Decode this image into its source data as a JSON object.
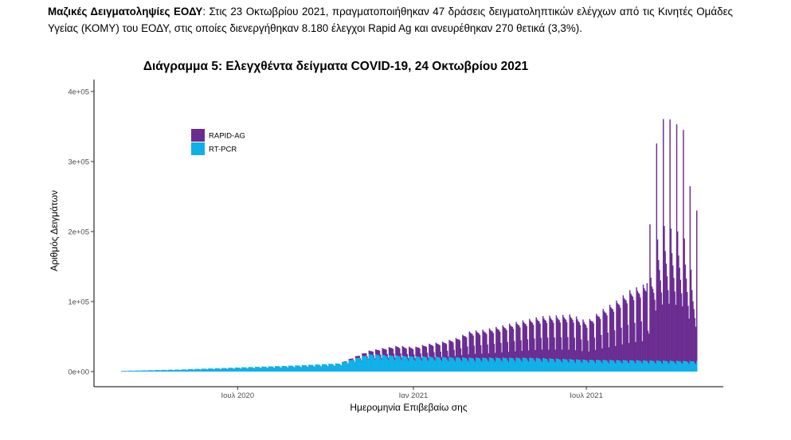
{
  "paragraph": {
    "lead": "Μαζικές Δειγματοληψίες ΕΟΔΥ",
    "text": ": Στις 23 Οκτωβρίου 2021, πραγματοποιήθηκαν 47 δράσεις δειγματοληπτικών ελέγχων από τις Κινητές Ομάδες Υγείας (ΚΟΜΥ) του ΕΟΔΥ, στις οποίες διενεργήθηκαν 8.180 έλεγχοι Rapid Ag και ανευρέθηκαν 270 θετικά (3,3%)."
  },
  "chart_data": {
    "type": "bar",
    "stacked": true,
    "title": "Διάγραμμα 5: Ελεγχθέντα δείγματα COVID-19, 24 Οκτωβρίου 2021",
    "xlabel": "Ημερομηνία Επιβεβαίω σης",
    "ylabel": "Αριθμός Δειγμάτων",
    "x_start": "2020-03-01",
    "x_end": "2021-10-24",
    "x_ticks": [
      {
        "date": "2020-07-01",
        "label": "Ιουλ 2020"
      },
      {
        "date": "2021-01-01",
        "label": "Ιαν 2021"
      },
      {
        "date": "2021-07-01",
        "label": "Ιουλ 2021"
      }
    ],
    "ylim": [
      0,
      420000
    ],
    "y_ticks": [
      {
        "value": 0,
        "label": "0e+00"
      },
      {
        "value": 100000,
        "label": "1e+05"
      },
      {
        "value": 200000,
        "label": "2e+05"
      },
      {
        "value": 300000,
        "label": "3e+05"
      },
      {
        "value": 400000,
        "label": "4e+05"
      }
    ],
    "grid": false,
    "legend_position": "top-left inside",
    "series": [
      {
        "name": "RAPID-AG",
        "color": "#6a2c91",
        "weekly_peaks": [
          [
            "2020-10-15",
            0
          ],
          [
            "2020-11-01",
            3000
          ],
          [
            "2020-11-15",
            5000
          ],
          [
            "2020-12-01",
            10000
          ],
          [
            "2020-12-15",
            14000
          ],
          [
            "2021-01-01",
            13000
          ],
          [
            "2021-01-15",
            18000
          ],
          [
            "2021-02-01",
            22000
          ],
          [
            "2021-02-15",
            28000
          ],
          [
            "2021-03-01",
            38000
          ],
          [
            "2021-03-15",
            40000
          ],
          [
            "2021-04-01",
            45000
          ],
          [
            "2021-04-15",
            50000
          ],
          [
            "2021-05-01",
            55000
          ],
          [
            "2021-05-15",
            60000
          ],
          [
            "2021-06-01",
            62000
          ],
          [
            "2021-06-15",
            64000
          ],
          [
            "2021-07-01",
            55000
          ],
          [
            "2021-07-15",
            70000
          ],
          [
            "2021-08-01",
            85000
          ],
          [
            "2021-08-15",
            100000
          ],
          [
            "2021-09-01",
            110000
          ],
          [
            "2021-09-10",
            300000
          ],
          [
            "2021-09-20",
            350000
          ],
          [
            "2021-10-01",
            340000
          ],
          [
            "2021-10-10",
            330000
          ],
          [
            "2021-10-20",
            215000
          ]
        ]
      },
      {
        "name": "RT-PCR",
        "color": "#0fb0e8",
        "weekly_peaks": [
          [
            "2020-03-01",
            1000
          ],
          [
            "2020-05-01",
            3000
          ],
          [
            "2020-07-01",
            6000
          ],
          [
            "2020-09-01",
            9000
          ],
          [
            "2020-10-15",
            12000
          ],
          [
            "2020-11-15",
            25000
          ],
          [
            "2021-01-01",
            22000
          ],
          [
            "2021-03-01",
            20000
          ],
          [
            "2021-05-01",
            20000
          ],
          [
            "2021-07-01",
            17000
          ],
          [
            "2021-09-01",
            16000
          ],
          [
            "2021-10-24",
            15000
          ]
        ]
      }
    ]
  }
}
